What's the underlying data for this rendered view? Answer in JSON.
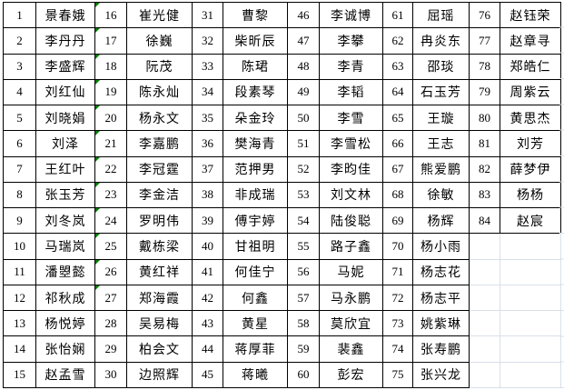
{
  "sheet": {
    "colors": {
      "cell_border": "#000000",
      "gridline": "#d9dfe9",
      "error_triangle": "#007d00",
      "background": "#ffffff",
      "text": "#000000"
    },
    "green_triangle_nums": [
      "16",
      "17",
      "18",
      "19",
      "20",
      "21",
      "22",
      "23",
      "24",
      "25",
      "26",
      "27"
    ],
    "groups": [
      {
        "entries": [
          {
            "num": "1",
            "name": "景春娥"
          },
          {
            "num": "2",
            "name": "李丹丹"
          },
          {
            "num": "3",
            "name": "李盛辉"
          },
          {
            "num": "4",
            "name": "刘红仙"
          },
          {
            "num": "5",
            "name": "刘晓娟"
          },
          {
            "num": "6",
            "name": "刘泽"
          },
          {
            "num": "7",
            "name": "王红叶"
          },
          {
            "num": "8",
            "name": "张玉芳"
          },
          {
            "num": "9",
            "name": "刘冬岚"
          },
          {
            "num": "10",
            "name": "马瑞岚"
          },
          {
            "num": "11",
            "name": "潘曌懿"
          },
          {
            "num": "12",
            "name": "祁秋成"
          },
          {
            "num": "13",
            "name": "杨悦婷"
          },
          {
            "num": "14",
            "name": "张怡娴"
          },
          {
            "num": "15",
            "name": "赵孟雪"
          }
        ]
      },
      {
        "entries": [
          {
            "num": "16",
            "name": "崔光健"
          },
          {
            "num": "17",
            "name": "徐巍"
          },
          {
            "num": "18",
            "name": "阮茂"
          },
          {
            "num": "19",
            "name": "陈永灿"
          },
          {
            "num": "20",
            "name": "杨永文"
          },
          {
            "num": "21",
            "name": "李嘉鹏"
          },
          {
            "num": "22",
            "name": "李冠霆"
          },
          {
            "num": "23",
            "name": "李金洁"
          },
          {
            "num": "24",
            "name": "罗明伟"
          },
          {
            "num": "25",
            "name": "戴栋梁"
          },
          {
            "num": "26",
            "name": "黄红祥"
          },
          {
            "num": "27",
            "name": "郑海霞"
          },
          {
            "num": "28",
            "name": "吴易梅"
          },
          {
            "num": "29",
            "name": "柏会文"
          },
          {
            "num": "30",
            "name": "边照辉"
          }
        ]
      },
      {
        "entries": [
          {
            "num": "31",
            "name": "曹黎"
          },
          {
            "num": "32",
            "name": "柴昕辰"
          },
          {
            "num": "33",
            "name": "陈珺"
          },
          {
            "num": "34",
            "name": "段素琴"
          },
          {
            "num": "35",
            "name": "朵金玲"
          },
          {
            "num": "36",
            "name": "樊海青"
          },
          {
            "num": "37",
            "name": "范押男"
          },
          {
            "num": "38",
            "name": "非成瑞"
          },
          {
            "num": "39",
            "name": "傅宇婷"
          },
          {
            "num": "40",
            "name": "甘祖明"
          },
          {
            "num": "41",
            "name": "何佳宁"
          },
          {
            "num": "42",
            "name": "何鑫"
          },
          {
            "num": "43",
            "name": "黄星"
          },
          {
            "num": "44",
            "name": "蒋厚菲"
          },
          {
            "num": "45",
            "name": "蒋曦"
          }
        ]
      },
      {
        "entries": [
          {
            "num": "46",
            "name": "李诚博"
          },
          {
            "num": "47",
            "name": "李攀"
          },
          {
            "num": "48",
            "name": "李青"
          },
          {
            "num": "49",
            "name": "李韬"
          },
          {
            "num": "50",
            "name": "李雪"
          },
          {
            "num": "51",
            "name": "李雪松"
          },
          {
            "num": "52",
            "name": "李昀佳"
          },
          {
            "num": "53",
            "name": "刘文林"
          },
          {
            "num": "54",
            "name": "陆俊聪"
          },
          {
            "num": "55",
            "name": "路子鑫"
          },
          {
            "num": "56",
            "name": "马妮"
          },
          {
            "num": "57",
            "name": "马永鹏"
          },
          {
            "num": "58",
            "name": "莫欣宜"
          },
          {
            "num": "59",
            "name": "裴鑫"
          },
          {
            "num": "60",
            "name": "彭宏"
          }
        ]
      },
      {
        "entries": [
          {
            "num": "61",
            "name": "屈瑶"
          },
          {
            "num": "62",
            "name": "冉炎东"
          },
          {
            "num": "63",
            "name": "邵琰"
          },
          {
            "num": "64",
            "name": "石玉芳"
          },
          {
            "num": "65",
            "name": "王璇"
          },
          {
            "num": "66",
            "name": "王志"
          },
          {
            "num": "67",
            "name": "熊爱鹏"
          },
          {
            "num": "68",
            "name": "徐敏"
          },
          {
            "num": "69",
            "name": "杨辉"
          },
          {
            "num": "70",
            "name": "杨小雨"
          },
          {
            "num": "71",
            "name": "杨志花"
          },
          {
            "num": "72",
            "name": "杨志平"
          },
          {
            "num": "73",
            "name": "姚紫琳"
          },
          {
            "num": "74",
            "name": "张寿鹏"
          },
          {
            "num": "75",
            "name": "张兴龙"
          }
        ]
      },
      {
        "entries": [
          {
            "num": "76",
            "name": "赵钰荣"
          },
          {
            "num": "77",
            "name": "赵章寻"
          },
          {
            "num": "78",
            "name": "郑皓仁"
          },
          {
            "num": "79",
            "name": "周紫云"
          },
          {
            "num": "80",
            "name": "黄思杰"
          },
          {
            "num": "81",
            "name": "刘芳"
          },
          {
            "num": "82",
            "name": "薛梦伊"
          },
          {
            "num": "83",
            "name": "杨杨"
          },
          {
            "num": "84",
            "name": "赵宸"
          },
          {
            "num": "",
            "name": ""
          },
          {
            "num": "",
            "name": ""
          },
          {
            "num": "",
            "name": ""
          },
          {
            "num": "",
            "name": ""
          },
          {
            "num": "",
            "name": ""
          },
          {
            "num": "",
            "name": ""
          }
        ]
      }
    ]
  }
}
